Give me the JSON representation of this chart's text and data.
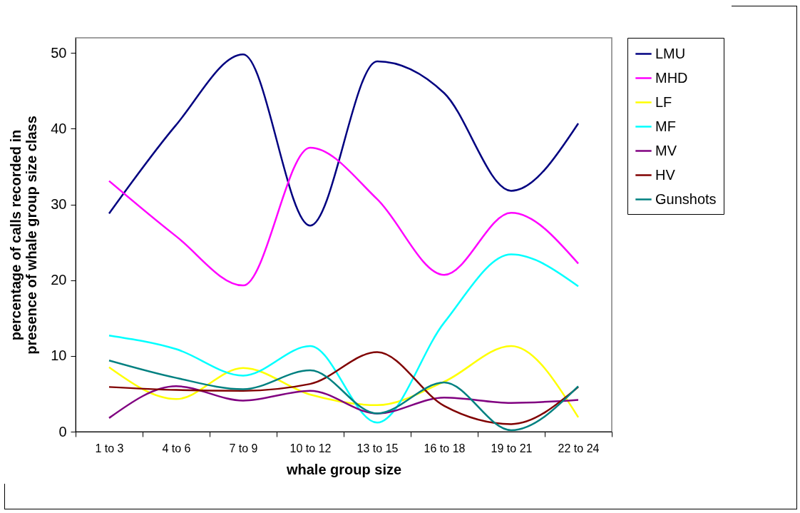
{
  "chart_data": {
    "type": "line",
    "xlabel": "whale group size",
    "ylabel": "percentage of calls recorded in presence of whale group size class",
    "categories": [
      "1 to 3",
      "4 to 6",
      "7 to 9",
      "10 to 12",
      "13 to 15",
      "16 to 18",
      "19 to 21",
      "22 to 24"
    ],
    "series": [
      {
        "name": "LMU",
        "color": "#000080",
        "values": [
          28.8,
          40.5,
          49.8,
          27.2,
          48.9,
          44.7,
          31.8,
          40.7
        ]
      },
      {
        "name": "MHD",
        "color": "#ff00ff",
        "values": [
          33.1,
          25.8,
          19.3,
          37.5,
          30.7,
          20.7,
          28.9,
          22.2
        ]
      },
      {
        "name": "LF",
        "color": "#ffff00",
        "values": [
          8.5,
          4.3,
          8.4,
          4.9,
          3.5,
          6.6,
          11.3,
          1.9
        ]
      },
      {
        "name": "MF",
        "color": "#00ffff",
        "values": [
          12.7,
          10.9,
          7.4,
          11.3,
          1.2,
          14.4,
          23.4,
          19.2
        ]
      },
      {
        "name": "MV",
        "color": "#800080",
        "values": [
          1.8,
          6.0,
          4.1,
          5.4,
          2.4,
          4.5,
          3.8,
          4.2
        ]
      },
      {
        "name": "HV",
        "color": "#800000",
        "values": [
          5.9,
          5.5,
          5.4,
          6.3,
          10.5,
          3.4,
          1.0,
          5.9
        ]
      },
      {
        "name": "Gunshots",
        "color": "#008080",
        "values": [
          9.4,
          7.1,
          5.6,
          8.1,
          2.4,
          6.5,
          0.2,
          6.0
        ]
      }
    ],
    "ylim": [
      0,
      52
    ],
    "yticks": [
      0,
      10,
      20,
      30,
      40,
      50
    ],
    "grid": false,
    "legend": "right",
    "marker": "none",
    "line_style": "solid"
  }
}
